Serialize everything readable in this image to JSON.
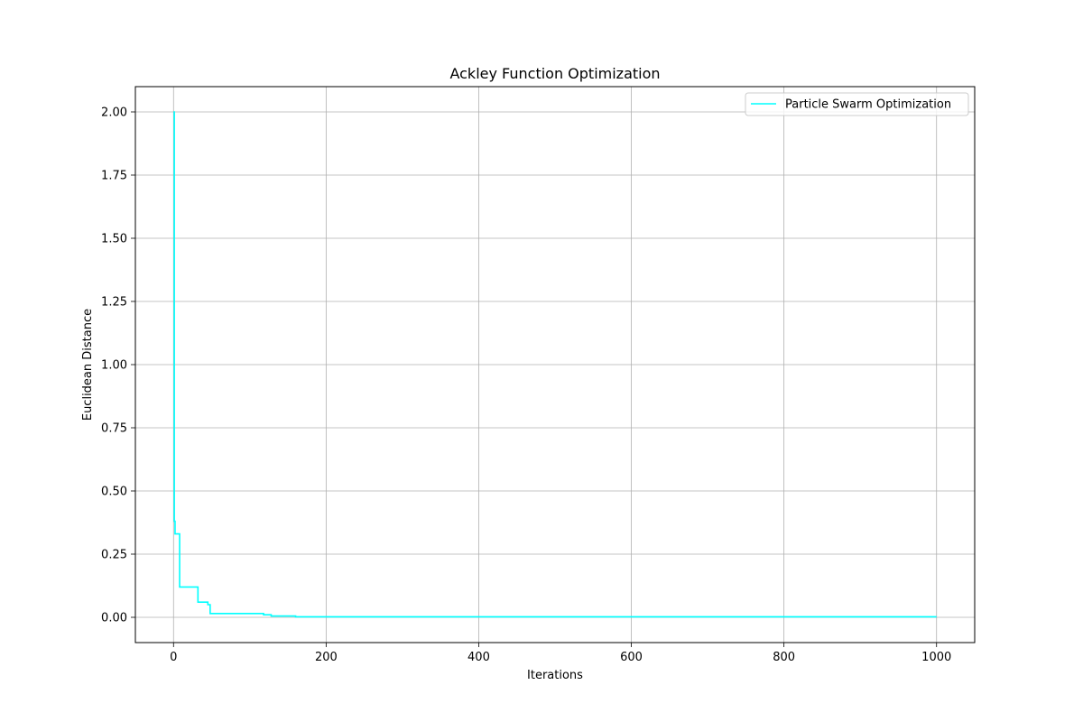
{
  "chart_data": {
    "type": "line",
    "title": "Ackley Function Optimization",
    "xlabel": "Iterations",
    "ylabel": "Euclidean Distance",
    "xlim": [
      -50,
      1050
    ],
    "ylim": [
      -0.1,
      2.1
    ],
    "xticks": [
      0,
      200,
      400,
      600,
      800,
      1000
    ],
    "yticks": [
      0.0,
      0.25,
      0.5,
      0.75,
      1.0,
      1.25,
      1.5,
      1.75,
      2.0
    ],
    "ytick_labels": [
      "0.00",
      "0.25",
      "0.50",
      "0.75",
      "1.00",
      "1.25",
      "1.50",
      "1.75",
      "2.00"
    ],
    "grid": true,
    "legend_position": "top-right",
    "step": true,
    "series": [
      {
        "name": "Particle Swarm Optimization",
        "color": "#00ffff",
        "x": [
          0,
          1,
          2,
          3,
          8,
          32,
          45,
          48,
          118,
          128,
          160,
          1000
        ],
        "y": [
          2.0,
          0.38,
          0.33,
          0.33,
          0.12,
          0.06,
          0.05,
          0.015,
          0.01,
          0.005,
          0.002,
          0.002
        ]
      }
    ]
  }
}
